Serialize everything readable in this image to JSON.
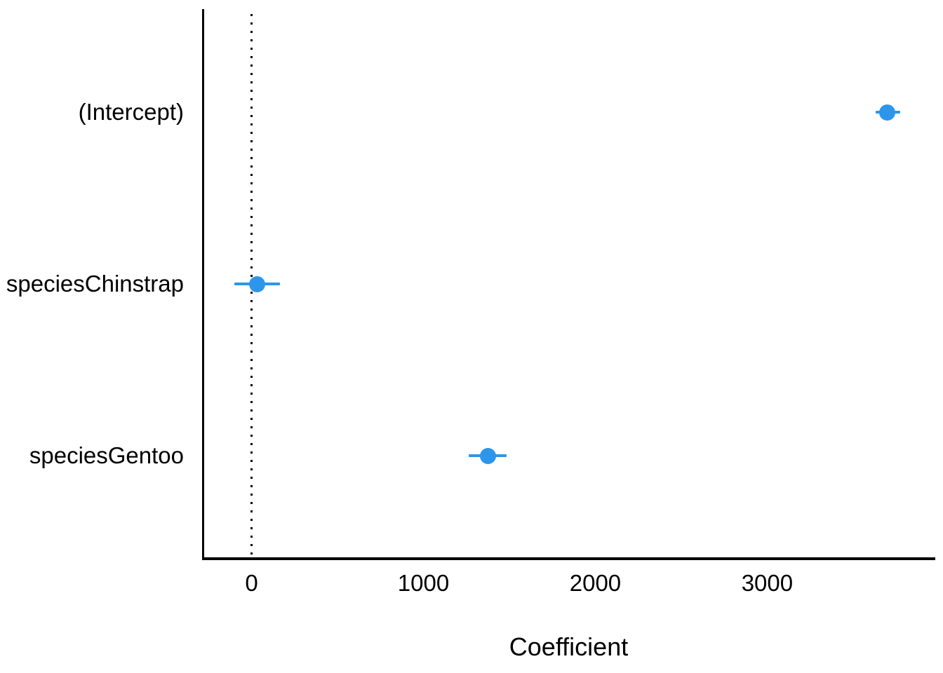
{
  "chart_data": {
    "type": "scatter",
    "subtype": "coefficient-dot-whisker",
    "title": "",
    "xlabel": "Coefficient",
    "ylabel": "",
    "categories": [
      "(Intercept)",
      "speciesChinstrap",
      "speciesGentoo"
    ],
    "series": [
      {
        "name": "coefficients",
        "points": [
          {
            "label": "(Intercept)",
            "estimate": 3700,
            "ci_low": 3630,
            "ci_high": 3775
          },
          {
            "label": "speciesChinstrap",
            "estimate": 32,
            "ci_low": -100,
            "ci_high": 165
          },
          {
            "label": "speciesGentoo",
            "estimate": 1375,
            "ci_low": 1265,
            "ci_high": 1485
          }
        ]
      }
    ],
    "x_ticks": [
      "0",
      "1000",
      "2000",
      "3000"
    ],
    "x_tick_values": [
      0,
      1000,
      2000,
      3000
    ],
    "xlim": [
      -280,
      3970
    ],
    "reference_line_x": 0,
    "grid": false,
    "legend": "none",
    "tick_marks": false,
    "colors": {
      "point": "#2D96EB",
      "error_bar": "#2D96EB",
      "axis": "#000000",
      "text": "#000000",
      "reference_line": "#000000",
      "background": "#FFFFFF"
    }
  }
}
